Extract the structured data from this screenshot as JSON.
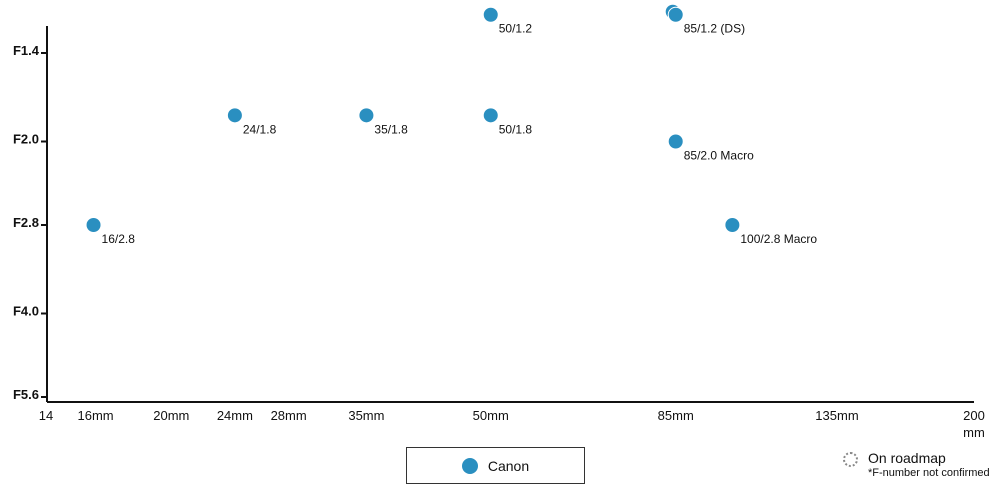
{
  "chart_data": {
    "type": "scatter",
    "xlabel": "",
    "ylabel": "",
    "x_ticks": [
      {
        "value": 14,
        "label": "14"
      },
      {
        "value": 16,
        "label": "16mm"
      },
      {
        "value": 20,
        "label": "20mm"
      },
      {
        "value": 24,
        "label": "24mm"
      },
      {
        "value": 28,
        "label": "28mm"
      },
      {
        "value": 35,
        "label": "35mm"
      },
      {
        "value": 50,
        "label": "50mm"
      },
      {
        "value": 85,
        "label": "85mm"
      },
      {
        "value": 135,
        "label": "135mm"
      },
      {
        "value": 200,
        "label": "200"
      }
    ],
    "x_unit_label": "mm",
    "y_ticks": [
      {
        "value": 1.4,
        "label": "F1.4"
      },
      {
        "value": 2.0,
        "label": "F2.0"
      },
      {
        "value": 2.8,
        "label": "F2.8"
      },
      {
        "value": 4.0,
        "label": "F4.0"
      },
      {
        "value": 5.6,
        "label": "F5.6"
      }
    ],
    "series": [
      {
        "name": "Canon",
        "color": "#2a8fc0",
        "points": [
          {
            "x": 16,
            "y": 2.8,
            "label": "16/2.8"
          },
          {
            "x": 24,
            "y": 1.8,
            "label": "24/1.8"
          },
          {
            "x": 35,
            "y": 1.8,
            "label": "35/1.8"
          },
          {
            "x": 50,
            "y": 1.2,
            "label": "50/1.2"
          },
          {
            "x": 50,
            "y": 1.8,
            "label": "50/1.8"
          },
          {
            "x": 85,
            "y": 1.2,
            "label": ""
          },
          {
            "x": 85,
            "y": 1.2,
            "label": "85/1.2 (DS)"
          },
          {
            "x": 85,
            "y": 2.0,
            "label": "85/2.0 Macro"
          },
          {
            "x": 100,
            "y": 2.8,
            "label": "100/2.8 Macro"
          }
        ]
      }
    ],
    "legend": {
      "label": "Canon",
      "color": "#2a8fc0",
      "position": "bottom-center"
    },
    "roadmap_note": {
      "title": "On roadmap",
      "note": "*F-number not confirmed"
    }
  }
}
